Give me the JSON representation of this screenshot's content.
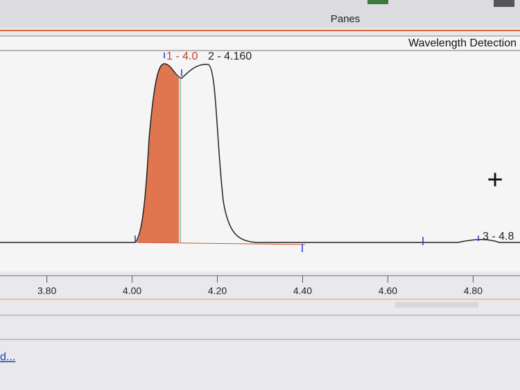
{
  "toolbar": {
    "panes": "Panes"
  },
  "pane": {
    "title": "Wavelength Detection"
  },
  "chart_data": {
    "type": "line",
    "xlim": [
      3.69,
      4.91
    ],
    "xticks": [
      {
        "value": 3.8,
        "label": "3.80"
      },
      {
        "value": 4.0,
        "label": "4.00"
      },
      {
        "value": 4.2,
        "label": "4.20"
      },
      {
        "value": 4.4,
        "label": "4.40"
      },
      {
        "value": 4.6,
        "label": "4.60"
      },
      {
        "value": 4.8,
        "label": "4.80"
      }
    ],
    "peak_labels": [
      "1 - 4.0",
      "2 - 4.160",
      "3 - 4.8"
    ]
  },
  "footer": {
    "link": "d..."
  }
}
